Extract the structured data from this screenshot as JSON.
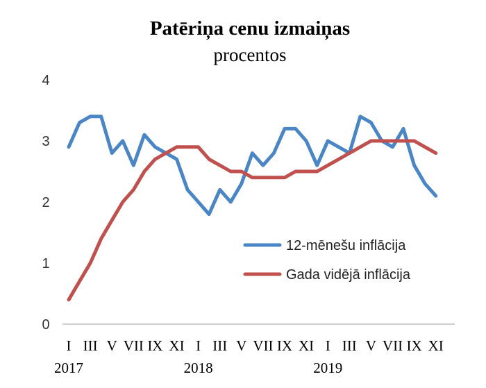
{
  "chart_data": {
    "type": "line",
    "title": "Patēriņa cenu izmaiņas",
    "subtitle": "procentos",
    "ylim": [
      0,
      4
    ],
    "yticks": [
      "0",
      "1",
      "2",
      "3",
      "4"
    ],
    "grid": false,
    "legend_position": "right-center",
    "x_month_labels": [
      "I",
      "III",
      "V",
      "VII",
      "IX",
      "XI",
      "I",
      "III",
      "V",
      "VII",
      "IX",
      "XI",
      "I",
      "III",
      "V",
      "VII",
      "IX",
      "XI"
    ],
    "x_year_labels": [
      "2017",
      "2018",
      "2019"
    ],
    "series": [
      {
        "name": "12-mēnešu inflācija",
        "color": "#4a86c5",
        "values": [
          2.9,
          3.3,
          3.4,
          3.4,
          2.8,
          3.0,
          2.6,
          3.1,
          2.9,
          2.8,
          2.7,
          2.2,
          2.0,
          1.8,
          2.2,
          2.0,
          2.3,
          2.8,
          2.6,
          2.8,
          3.2,
          3.2,
          3.0,
          2.6,
          3.0,
          2.9,
          2.8,
          3.4,
          3.3,
          3.0,
          2.9,
          3.2,
          2.6,
          2.3,
          2.1
        ]
      },
      {
        "name": "Gada vidējā inflācija",
        "color": "#c0504d",
        "values": [
          0.4,
          0.7,
          1.0,
          1.4,
          1.7,
          2.0,
          2.2,
          2.5,
          2.7,
          2.8,
          2.9,
          2.9,
          2.9,
          2.7,
          2.6,
          2.5,
          2.5,
          2.4,
          2.4,
          2.4,
          2.4,
          2.5,
          2.5,
          2.5,
          2.6,
          2.7,
          2.8,
          2.9,
          3.0,
          3.0,
          3.0,
          3.0,
          3.0,
          2.9,
          2.8
        ]
      }
    ]
  }
}
